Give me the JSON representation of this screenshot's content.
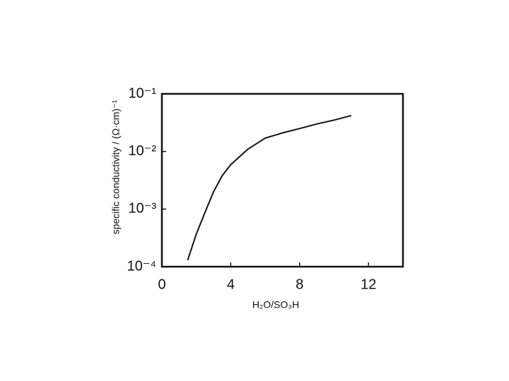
{
  "chart_data": {
    "type": "line",
    "x_label": "H₂O/SO₃H",
    "y_label": "specific conductivity / (Ω·cm)⁻¹",
    "x": [
      1.5,
      2,
      2.5,
      3,
      3.5,
      4,
      5,
      6,
      7,
      8,
      9,
      10,
      11
    ],
    "series": [
      {
        "color": "#111111",
        "values": [
          0.00013,
          0.00037,
          0.00087,
          0.002,
          0.0038,
          0.0059,
          0.011,
          0.017,
          0.021,
          0.025,
          0.03,
          0.035,
          0.042
        ]
      }
    ],
    "xlim": [
      0,
      14
    ],
    "xticks": [
      0,
      4,
      8,
      12
    ],
    "ylim": [
      0.0001,
      0.1
    ],
    "y_scale": "log",
    "yticks": [
      {
        "value": 0.1,
        "label": "10⁻¹"
      },
      {
        "value": 0.01,
        "label": "10⁻²"
      },
      {
        "value": 0.001,
        "label": "10⁻³"
      },
      {
        "value": 0.0001,
        "label": "10⁻⁴"
      }
    ],
    "grid": false
  }
}
